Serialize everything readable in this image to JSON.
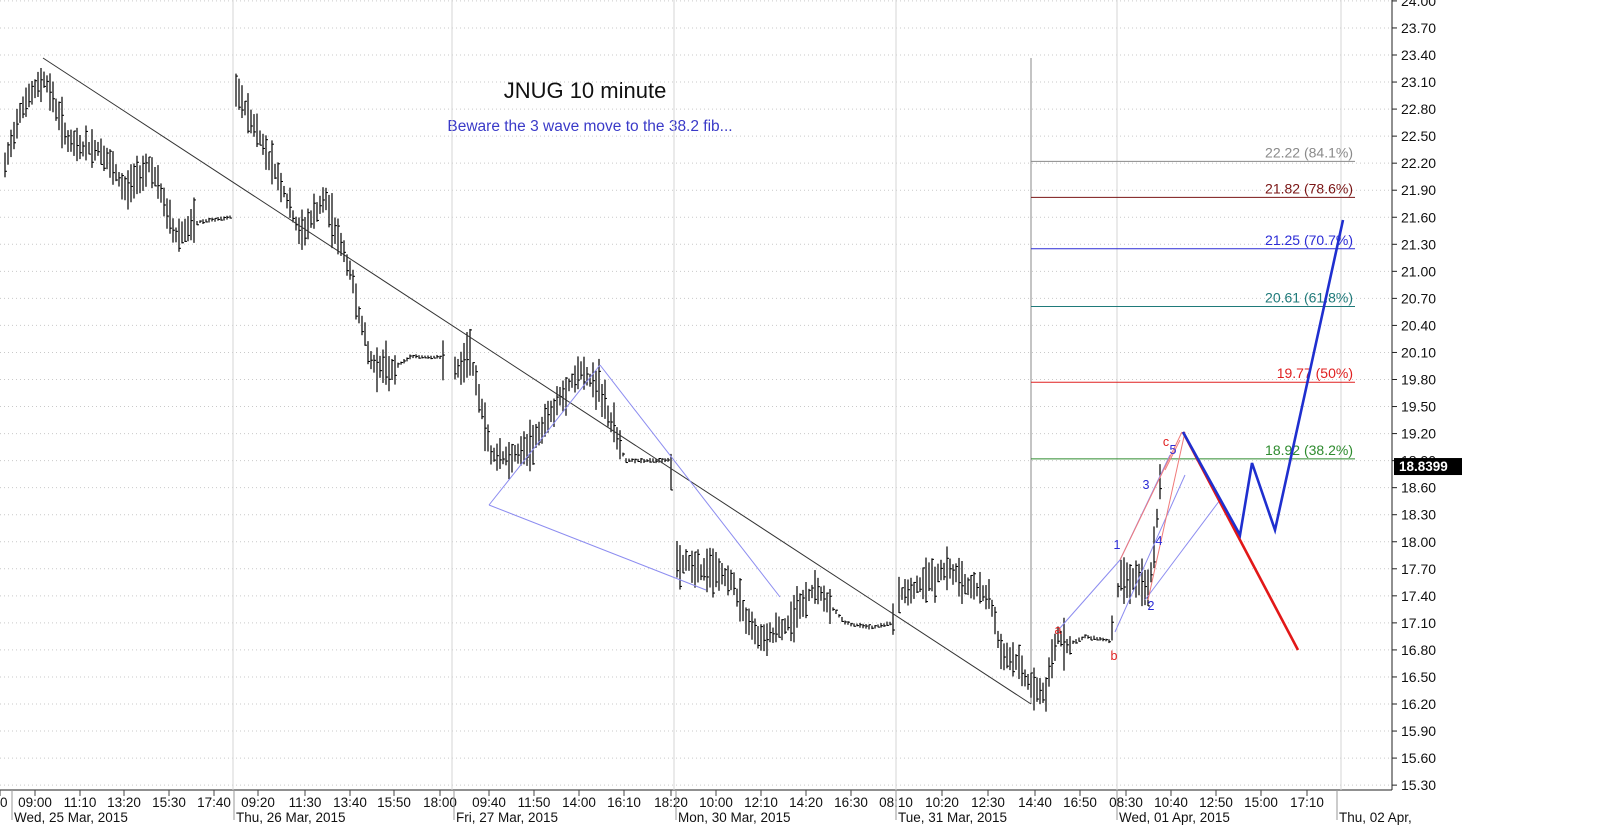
{
  "chart_data": {
    "type": "line",
    "title": "JNUG 10 minute",
    "subtitle": "Beware the 3 wave move to the 38.2 fib...",
    "ylim": [
      15.3,
      24.0
    ],
    "y_ticks": [
      "15.30",
      "15.60",
      "15.90",
      "16.20",
      "16.50",
      "16.80",
      "17.10",
      "17.40",
      "17.70",
      "18.00",
      "18.30",
      "18.60",
      "18.90",
      "19.20",
      "19.50",
      "19.80",
      "20.10",
      "20.40",
      "20.70",
      "21.00",
      "21.30",
      "21.60",
      "21.90",
      "22.20",
      "22.50",
      "22.80",
      "23.10",
      "23.40",
      "23.70",
      "24.00"
    ],
    "x_ticks": [
      "0",
      "09:00",
      "11:10",
      "13:20",
      "15:30",
      "17:40",
      "09:20",
      "11:30",
      "13:40",
      "15:50",
      "18:00",
      "09:40",
      "11:50",
      "14:00",
      "16:10",
      "18:20",
      "10:00",
      "12:10",
      "14:20",
      "16:30",
      "08:10",
      "10:20",
      "12:30",
      "14:40",
      "16:50",
      "08:30",
      "10:40",
      "12:50",
      "15:00",
      "17:10"
    ],
    "date_labels": [
      "Wed, 25 Mar, 2015",
      "Thu, 26 Mar, 2015",
      "Fri, 27 Mar, 2015",
      "Mon, 30 Mar, 2015",
      "Tue, 31 Mar, 2015",
      "Wed, 01 Apr, 2015",
      "Thu, 02 Apr,"
    ],
    "last_price": "18.8399",
    "fib_levels": [
      {
        "label": "22.22 (84.1%)",
        "value": 22.22,
        "color": "#8a8a8a"
      },
      {
        "label": "21.82 (78.6%)",
        "value": 21.82,
        "color": "#7a1515"
      },
      {
        "label": "21.25 (70.7%)",
        "value": 21.25,
        "color": "#2b2bd6"
      },
      {
        "label": "20.61 (61.8%)",
        "value": 20.61,
        "color": "#1f7a7a"
      },
      {
        "label": "19.77 (50%)",
        "value": 19.77,
        "color": "#e02020"
      },
      {
        "label": "18.92 (38.2%)",
        "value": 18.92,
        "color": "#2e8b2e"
      }
    ],
    "wave_labels": [
      {
        "text": "a",
        "color": "#e02020"
      },
      {
        "text": "b",
        "color": "#e02020"
      },
      {
        "text": "c",
        "color": "#e02020"
      },
      {
        "text": "1",
        "color": "#2b2bd6"
      },
      {
        "text": "2",
        "color": "#2b2bd6"
      },
      {
        "text": "3",
        "color": "#2b2bd6"
      },
      {
        "text": "4",
        "color": "#2b2bd6"
      },
      {
        "text": "5",
        "color": "#2b2bd6"
      }
    ],
    "series": [
      {
        "x": [
          "Wed 09:00",
          "Wed 13:20",
          "Wed 15:30",
          "Wed 17:40",
          "Thu 09:20",
          "Thu 11:30",
          "Thu 13:40",
          "Thu 15:50",
          "Fri 09:40",
          "Fri 11:50",
          "Fri 14:00",
          "Fri 16:10",
          "Mon 10:00",
          "Mon 12:10",
          "Mon 14:20",
          "Mon 16:30",
          "Tue 08:10",
          "Tue 10:20",
          "Tue 12:30",
          "Tue 14:40",
          "Tue 16:50",
          "Wed 08:30",
          "Wed 10:40"
        ],
        "values": [
          23.1,
          22.3,
          21.4,
          21.6,
          23.1,
          22.0,
          20.8,
          19.9,
          19.3,
          19.2,
          19.9,
          18.9,
          17.9,
          17.0,
          17.5,
          17.1,
          17.3,
          17.6,
          17.2,
          16.3,
          16.95,
          17.4,
          19.0
        ]
      }
    ]
  }
}
